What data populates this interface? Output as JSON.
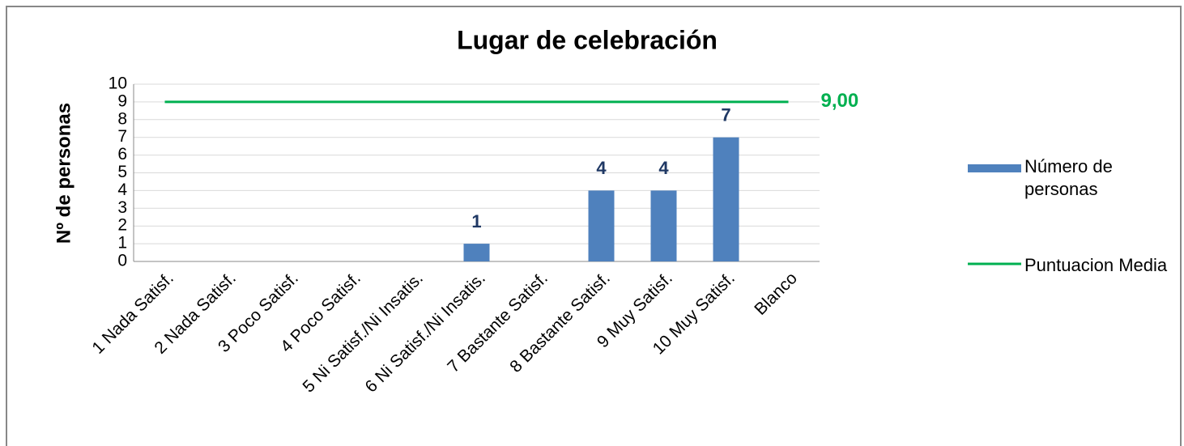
{
  "chart_data": {
    "type": "bar-line",
    "title": "Lugar de celebración",
    "y_label": "Nº de personas",
    "categories": [
      "1 Nada Satisf.",
      "2 Nada Satisf.",
      "3 Poco Satisf.",
      "4 Poco Satisf.",
      "5 Ni Satisf./Ni Insatis.",
      "6 Ni Satisf./Ni Insatis.",
      "7 Bastante Satisf.",
      "8 Bastante Satisf.",
      "9 Muy Satisf.",
      "10 Muy Satisf.",
      "Blanco"
    ],
    "series": [
      {
        "name": "Número de personas",
        "type": "bar",
        "color": "#4f81bd",
        "values": [
          null,
          null,
          null,
          null,
          null,
          1,
          null,
          4,
          4,
          7,
          null
        ]
      },
      {
        "name": "Puntuacion Media",
        "type": "line",
        "color": "#00b050",
        "values": [
          9,
          9,
          9,
          9,
          9,
          9,
          9,
          9,
          9,
          9,
          9
        ],
        "value_labels": [
          null,
          null,
          null,
          null,
          null,
          null,
          null,
          null,
          null,
          null,
          "9,00"
        ]
      }
    ],
    "ylim": [
      0,
      10
    ],
    "yticks": [
      0,
      1,
      2,
      3,
      4,
      5,
      6,
      7,
      8,
      9,
      10
    ],
    "grid": true
  }
}
